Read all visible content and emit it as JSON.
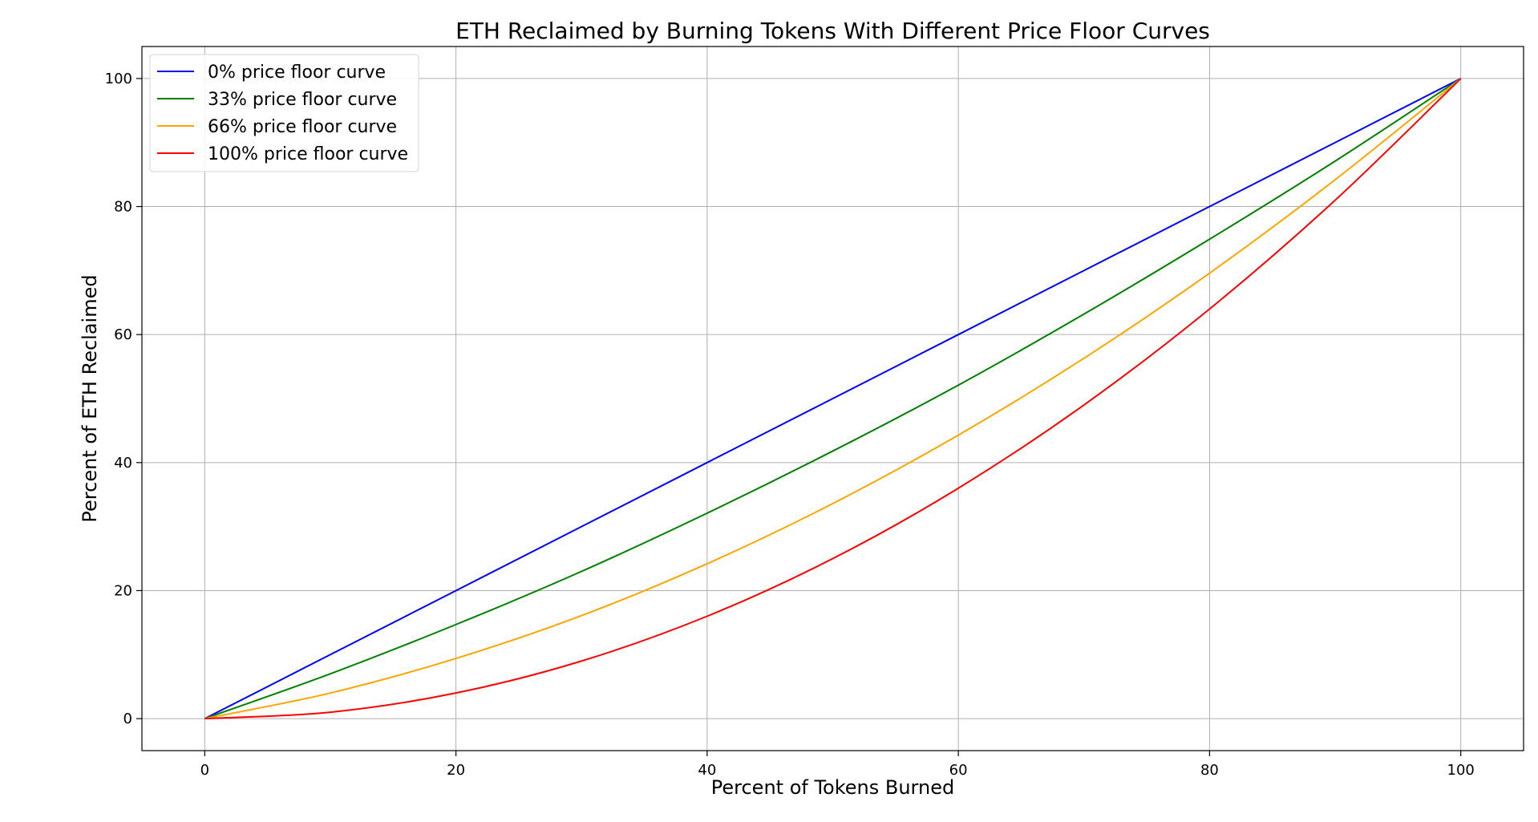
{
  "chart_data": {
    "type": "line",
    "title": "ETH Reclaimed by Burning Tokens With Different Price Floor Curves",
    "xlabel": "Percent of Tokens Burned",
    "ylabel": "Percent of ETH Reclaimed",
    "xlim": [
      -5,
      105
    ],
    "ylim": [
      -5,
      105
    ],
    "xticks": [
      0,
      20,
      40,
      60,
      80,
      100
    ],
    "yticks": [
      0,
      20,
      40,
      60,
      80,
      100
    ],
    "grid": true,
    "legend_position": "top-left",
    "x": [
      0,
      10,
      20,
      30,
      40,
      50,
      60,
      70,
      80,
      90,
      100
    ],
    "series": [
      {
        "name": "0% price floor curve",
        "color": "#0000ff",
        "values": [
          0,
          10,
          20,
          30,
          40,
          50,
          60,
          70,
          80,
          90,
          100
        ]
      },
      {
        "name": "33% price floor curve",
        "color": "#008000",
        "values": [
          0,
          7.0,
          14.7,
          23.0,
          32.1,
          41.8,
          52.1,
          63.2,
          74.9,
          87.1,
          100
        ]
      },
      {
        "name": "66% price floor curve",
        "color": "#ffa500",
        "values": [
          0,
          4.0,
          9.4,
          16.1,
          24.2,
          33.6,
          44.3,
          56.3,
          69.6,
          84.2,
          100
        ]
      },
      {
        "name": "100% price floor curve",
        "color": "#ff0000",
        "values": [
          0,
          1,
          4,
          9,
          16,
          25,
          36,
          49,
          64,
          81,
          100
        ]
      }
    ]
  }
}
